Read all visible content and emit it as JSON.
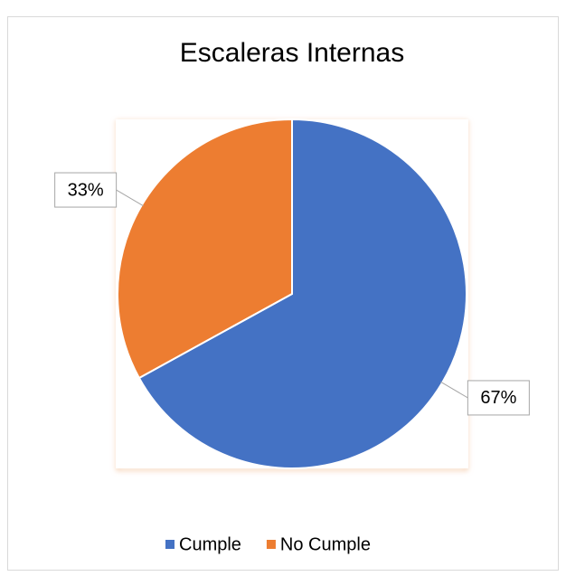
{
  "chart_data": {
    "type": "pie",
    "title": "Escaleras Internas",
    "categories": [
      "Cumple",
      "No Cumple"
    ],
    "values": [
      67,
      33
    ],
    "value_labels": [
      "67%",
      "33%"
    ],
    "colors": [
      "#4472c4",
      "#ed7d31"
    ],
    "legend": "bottom"
  }
}
